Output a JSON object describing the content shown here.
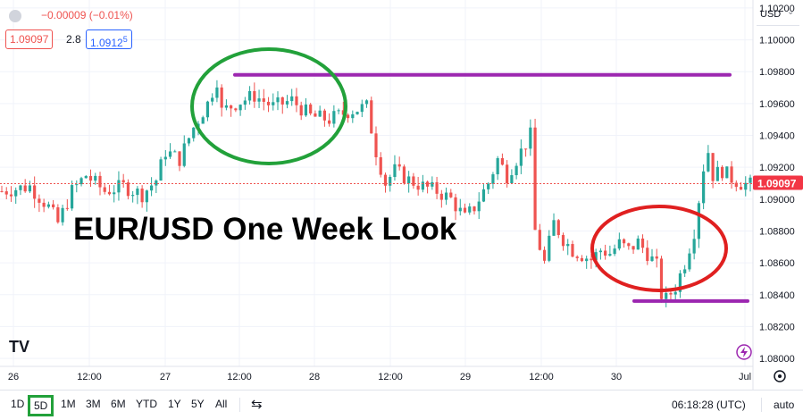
{
  "header": {
    "change_text": "−0.00009 (−0.01%)",
    "bid": "1.09097",
    "spread": "2.8",
    "ask": "1.0912",
    "ask_sup": "5",
    "currency": "USD"
  },
  "colors": {
    "up": "#26a69a",
    "down": "#ef5350",
    "purple_line": "#9c27b0",
    "circle_green": "#22a13a",
    "circle_red": "#e02020",
    "price_label_bg": "#f23645"
  },
  "annotation_title": "EUR/USD One Week Look",
  "logo_text": "TV",
  "footer": {
    "ranges": [
      "1D",
      "5D",
      "1M",
      "3M",
      "6M",
      "YTD",
      "1Y",
      "5Y",
      "All"
    ],
    "active_range": "5D",
    "time": "06:18:28 (UTC)",
    "auto": "auto"
  },
  "chart_data": {
    "type": "candlestick",
    "symbol": "EUR/USD",
    "y_ticks": [
      "1.10200",
      "1.10000",
      "1.09800",
      "1.09600",
      "1.09400",
      "1.09200",
      "1.09000",
      "1.08800",
      "1.08600",
      "1.08400",
      "1.08200",
      "1.08000"
    ],
    "ylim": [
      1.0795,
      1.1025
    ],
    "x_ticks": [
      "26",
      "12:00",
      "27",
      "12:00",
      "28",
      "12:00",
      "29",
      "12:00",
      "30",
      "Jul"
    ],
    "current_price": 1.09097,
    "current_price_label": "1.09097",
    "resistance_level": 1.0978,
    "support_level": 1.0836,
    "close_path": [
      [
        0,
        1.0905
      ],
      [
        6,
        1.0908
      ],
      [
        10,
        1.0895
      ],
      [
        12,
        1.0885
      ],
      [
        15,
        1.0905
      ],
      [
        18,
        1.0915
      ],
      [
        22,
        1.0905
      ],
      [
        26,
        1.0908
      ],
      [
        30,
        1.0903
      ],
      [
        33,
        1.0912
      ],
      [
        35,
        1.093
      ],
      [
        38,
        1.0925
      ],
      [
        41,
        1.0945
      ],
      [
        44,
        1.096
      ],
      [
        46,
        1.0975
      ],
      [
        47,
        1.0955
      ],
      [
        50,
        1.096
      ],
      [
        54,
        1.0965
      ],
      [
        58,
        1.0958
      ],
      [
        62,
        1.0962
      ],
      [
        66,
        1.0952
      ],
      [
        70,
        1.095
      ],
      [
        74,
        1.0955
      ],
      [
        78,
        1.0958
      ],
      [
        80,
        1.093
      ],
      [
        82,
        1.091
      ],
      [
        84,
        1.0918
      ],
      [
        87,
        1.0912
      ],
      [
        90,
        1.0908
      ],
      [
        93,
        1.0905
      ],
      [
        96,
        1.09
      ],
      [
        99,
        1.0888
      ],
      [
        101,
        1.0895
      ],
      [
        104,
        1.091
      ],
      [
        106,
        1.0925
      ],
      [
        108,
        1.0915
      ],
      [
        110,
        1.0925
      ],
      [
        112,
        1.0935
      ],
      [
        113,
        1.094
      ],
      [
        114,
        1.088
      ],
      [
        116,
        1.086
      ],
      [
        118,
        1.0885
      ],
      [
        120,
        1.0875
      ],
      [
        122,
        1.0868
      ],
      [
        124,
        1.0865
      ],
      [
        126,
        1.0862
      ],
      [
        128,
        1.0868
      ],
      [
        130,
        1.0866
      ],
      [
        132,
        1.0872
      ],
      [
        134,
        1.0868
      ],
      [
        136,
        1.0873
      ],
      [
        138,
        1.0866
      ],
      [
        140,
        1.0858
      ],
      [
        141,
        1.084
      ],
      [
        142,
        1.0837
      ],
      [
        144,
        1.0845
      ],
      [
        146,
        1.086
      ],
      [
        148,
        1.088
      ],
      [
        149,
        1.09
      ],
      [
        150,
        1.092
      ],
      [
        151,
        1.093
      ],
      [
        152,
        1.0915
      ],
      [
        154,
        1.0918
      ],
      [
        156,
        1.0913
      ],
      [
        158,
        1.091
      ],
      [
        160,
        1.0909
      ]
    ]
  }
}
